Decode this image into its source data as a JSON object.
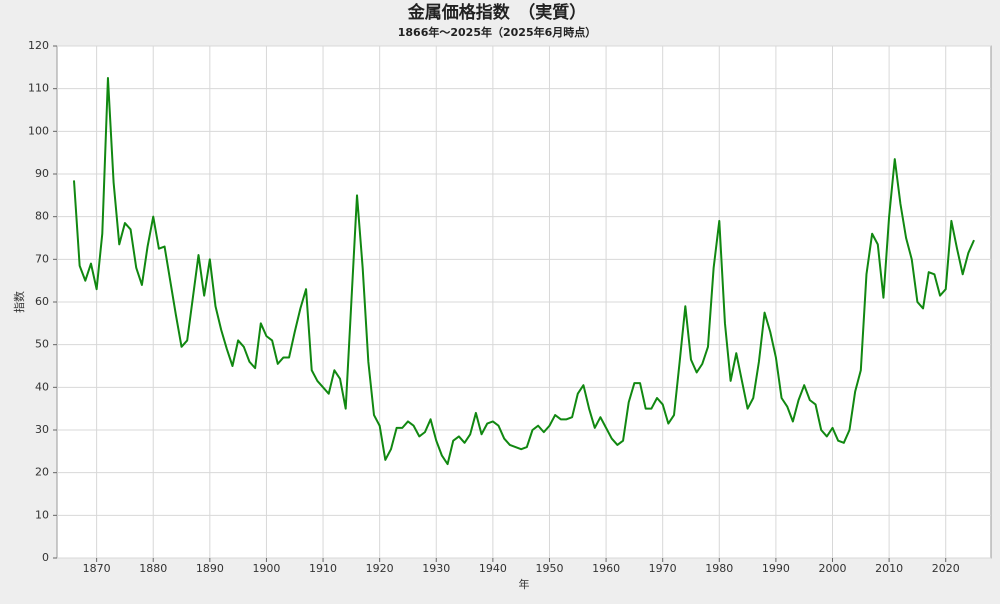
{
  "chart_data": {
    "type": "line",
    "title": "金属価格指数　（実質）",
    "subtitle": "1866年～2025年（2025年6月時点）",
    "x_label": "年",
    "y_label": "指数",
    "x": [
      1866,
      1867,
      1868,
      1869,
      1870,
      1871,
      1872,
      1873,
      1874,
      1875,
      1876,
      1877,
      1878,
      1879,
      1880,
      1881,
      1882,
      1883,
      1884,
      1885,
      1886,
      1887,
      1888,
      1889,
      1890,
      1891,
      1892,
      1893,
      1894,
      1895,
      1896,
      1897,
      1898,
      1899,
      1900,
      1901,
      1902,
      1903,
      1904,
      1905,
      1906,
      1907,
      1908,
      1909,
      1910,
      1911,
      1912,
      1913,
      1914,
      1915,
      1916,
      1917,
      1918,
      1919,
      1920,
      1921,
      1922,
      1923,
      1924,
      1925,
      1926,
      1927,
      1928,
      1929,
      1930,
      1931,
      1932,
      1933,
      1934,
      1935,
      1936,
      1937,
      1938,
      1939,
      1940,
      1941,
      1942,
      1943,
      1944,
      1945,
      1946,
      1947,
      1948,
      1949,
      1950,
      1951,
      1952,
      1953,
      1954,
      1955,
      1956,
      1957,
      1958,
      1959,
      1960,
      1961,
      1962,
      1963,
      1964,
      1965,
      1966,
      1967,
      1968,
      1969,
      1970,
      1971,
      1972,
      1973,
      1974,
      1975,
      1976,
      1977,
      1978,
      1979,
      1980,
      1981,
      1982,
      1983,
      1984,
      1985,
      1986,
      1987,
      1988,
      1989,
      1990,
      1991,
      1992,
      1993,
      1994,
      1995,
      1996,
      1997,
      1998,
      1999,
      2000,
      2001,
      2002,
      2003,
      2004,
      2005,
      2006,
      2007,
      2008,
      2009,
      2010,
      2011,
      2012,
      2013,
      2014,
      2015,
      2016,
      2017,
      2018,
      2019,
      2020,
      2021,
      2022,
      2023,
      2024,
      2025
    ],
    "series": [
      {
        "name": "金属価格指数",
        "color": "#118811",
        "values": [
          88.5,
          68.5,
          65,
          69,
          63,
          76,
          112.5,
          88,
          73.5,
          78.5,
          77,
          68,
          64,
          73,
          80,
          72.5,
          73,
          65,
          57,
          49.5,
          51,
          61,
          71,
          61.5,
          70,
          59,
          53.5,
          49,
          45,
          51,
          49.5,
          46,
          44.5,
          55,
          52,
          51,
          45.5,
          47,
          47,
          53,
          58.5,
          63,
          44,
          41.5,
          40,
          38.5,
          44,
          42,
          35,
          60,
          85,
          68,
          46,
          33.5,
          31,
          23,
          25.5,
          30.5,
          30.5,
          32,
          31,
          28.5,
          29.5,
          32.5,
          27.5,
          24,
          22,
          27.5,
          28.5,
          27,
          29,
          34,
          29,
          31.5,
          32,
          31,
          28,
          26.5,
          26,
          25.5,
          26,
          30,
          31,
          29.5,
          31,
          33.5,
          32.5,
          32.5,
          33,
          38.5,
          40.5,
          35,
          30.5,
          33,
          30.5,
          28,
          26.5,
          27.5,
          36.5,
          41,
          41,
          35,
          35,
          37.5,
          36,
          31.5,
          33.5,
          46,
          59,
          46.5,
          43.5,
          45.5,
          49.5,
          68,
          79,
          55,
          41.5,
          48,
          41.5,
          35,
          37.5,
          46,
          57.5,
          53,
          47,
          37.5,
          35.5,
          32,
          37,
          40.5,
          37,
          36,
          30,
          28.5,
          30.5,
          27.5,
          27,
          30,
          39,
          44,
          66.5,
          76,
          73.5,
          61,
          80,
          93.5,
          83,
          75,
          70,
          60,
          58.5,
          67,
          66.5,
          61.5,
          63,
          79,
          72.5,
          66.5,
          71.5,
          74.5
        ]
      }
    ],
    "xlim": [
      1863,
      2028
    ],
    "ylim": [
      0,
      120
    ],
    "xticks": [
      1870,
      1880,
      1890,
      1900,
      1910,
      1920,
      1930,
      1940,
      1950,
      1960,
      1970,
      1980,
      1990,
      2000,
      2010,
      2020
    ],
    "yticks": [
      0,
      10,
      20,
      30,
      40,
      50,
      60,
      70,
      80,
      90,
      100,
      110,
      120
    ],
    "grid": true
  }
}
